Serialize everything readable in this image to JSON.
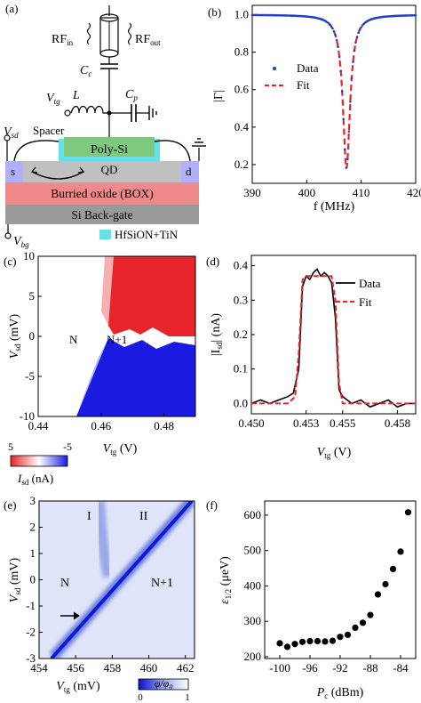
{
  "panels": {
    "a": {
      "label": "(a)",
      "rf_in": "RF",
      "rf_in_sub": "in",
      "rf_out": "RF",
      "rf_out_sub": "out",
      "cc": "C",
      "cc_sub": "c",
      "vtg": "V",
      "vtg_sub": "tg",
      "inductor": "L",
      "cp": "C",
      "cp_sub": "p",
      "vsd": "V",
      "vsd_sub": "sd",
      "spacer": "Spacer",
      "gate": "Poly-Si",
      "qd": "QD",
      "source": "s",
      "drain": "d",
      "box": "Burried oxide (BOX)",
      "backgate": "Si Back-gate",
      "vbg": "V",
      "vbg_sub": "bg",
      "legend_dielectric": "HfSiON+TiN",
      "colors": {
        "gate": "#7fc97f",
        "qd": "#e8252a",
        "box": "#f08a8a",
        "backgate": "#9a9a9a",
        "channel": "#c0c0c0",
        "contacts": "#b0b0ff",
        "dielectric": "#66e0e8"
      }
    },
    "e": {
      "label": "(e)",
      "region_labels": [
        "I",
        "II",
        "N",
        "N+1"
      ],
      "colorbar_label": "φ/φ",
      "colorbar_label_sub": "0",
      "colorbar_ticks": [
        "0",
        "1"
      ]
    },
    "c": {
      "colorbar_ticks": [
        "5",
        "-5"
      ],
      "colorbar_label": "I",
      "colorbar_label_sub": "sd",
      "colorbar_unit": " (nA)"
    }
  },
  "chart_data": [
    {
      "panel": "(b)",
      "type": "line",
      "xlabel": "f (MHz)",
      "ylabel": "|Γ|",
      "xlim": [
        390,
        420
      ],
      "ylim": [
        0.1,
        1.05
      ],
      "xticks": [
        "390",
        "400",
        "410",
        "420"
      ],
      "yticks": [
        "0.2",
        "0.4",
        "0.6",
        "0.8",
        "1.0"
      ],
      "legend": [
        "Data",
        "Fit"
      ],
      "legend_position": "center-left",
      "series": [
        {
          "name": "Data",
          "style": "dots",
          "color": "#1f3fcf",
          "resonance": {
            "f0": 407.3,
            "baseline": 1.0,
            "min": 0.18,
            "width": 1.6
          }
        },
        {
          "name": "Fit",
          "style": "dashed",
          "color": "#e8252a",
          "resonance": {
            "f0": 407.3,
            "baseline": 1.0,
            "min": 0.18,
            "width": 1.6
          }
        }
      ]
    },
    {
      "panel": "(c)",
      "type": "heatmap",
      "xlabel": "V",
      "xlabel_sub": "tg",
      "xlabel_unit": " (V)",
      "ylabel": "V",
      "ylabel_sub": "sd",
      "ylabel_unit": " (mV)",
      "xlim": [
        0.44,
        0.49
      ],
      "ylim": [
        -10,
        10
      ],
      "xticks": [
        "0.44",
        "0.46",
        "0.48"
      ],
      "yticks": [
        "10",
        "5",
        "0",
        "-5",
        "-10"
      ],
      "annotations": [
        "N",
        "N+1"
      ],
      "colorbar_range": [
        5,
        -5
      ]
    },
    {
      "panel": "(d)",
      "type": "line",
      "xlabel": "V",
      "xlabel_sub": "tg",
      "xlabel_unit": " (V)",
      "ylabel": "|I",
      "ylabel_sub": "sd",
      "ylabel_unit": "| (nA)",
      "xlim": [
        0.45,
        0.459
      ],
      "ylim": [
        -0.03,
        0.43
      ],
      "xticks": [
        "0.450",
        "0.453",
        "0.455",
        "0.458"
      ],
      "yticks": [
        "0.0",
        "0.1",
        "0.2",
        "0.3",
        "0.4"
      ],
      "legend": [
        "Data",
        "Fit"
      ],
      "legend_position": "top-right",
      "series": [
        {
          "name": "Data",
          "color": "#000000",
          "x": [
            0.45,
            0.4505,
            0.451,
            0.4515,
            0.452,
            0.4523,
            0.4526,
            0.4528,
            0.453,
            0.4532,
            0.4534,
            0.4536,
            0.4538,
            0.454,
            0.4542,
            0.4544,
            0.4546,
            0.4548,
            0.455,
            0.4555,
            0.456,
            0.4565,
            0.457,
            0.4575,
            0.458,
            0.4585,
            0.459
          ],
          "y": [
            0.0,
            0.01,
            0.0,
            0.01,
            0.02,
            0.03,
            0.1,
            0.34,
            0.37,
            0.36,
            0.38,
            0.39,
            0.37,
            0.38,
            0.37,
            0.35,
            0.25,
            0.04,
            0.02,
            0.0,
            0.01,
            -0.01,
            0.0,
            0.01,
            -0.01,
            0.0,
            0.0
          ]
        },
        {
          "name": "Fit",
          "color": "#e8252a",
          "style": "dashed",
          "x": [
            0.45,
            0.452,
            0.4524,
            0.4526,
            0.4528,
            0.453,
            0.4544,
            0.4546,
            0.4548,
            0.455,
            0.459
          ],
          "y": [
            0.0,
            0.0,
            0.02,
            0.15,
            0.36,
            0.37,
            0.37,
            0.3,
            0.06,
            0.0,
            0.0
          ]
        }
      ]
    },
    {
      "panel": "(e)",
      "type": "heatmap",
      "xlabel": "V",
      "xlabel_sub": "tg",
      "xlabel_unit": " (mV)",
      "ylabel": "V",
      "ylabel_sub": "sd",
      "ylabel_unit": " (mV)",
      "xlim": [
        454,
        462.5
      ],
      "ylim": [
        -3,
        3
      ],
      "xticks": [
        "454",
        "456",
        "458",
        "460",
        "462"
      ],
      "yticks": [
        "3",
        "2",
        "1",
        "0",
        "-1",
        "-2",
        "-3"
      ]
    },
    {
      "panel": "(f)",
      "type": "scatter",
      "xlabel": "P",
      "xlabel_sub": "c",
      "xlabel_unit": " (dBm)",
      "ylabel": "ε",
      "ylabel_sub": "1/2",
      "ylabel_unit": " (μeV)",
      "xlim": [
        -102,
        -82
      ],
      "ylim": [
        195,
        640
      ],
      "xticks": [
        "-100",
        "-96",
        "-92",
        "-88",
        "-84"
      ],
      "yticks": [
        "200",
        "300",
        "400",
        "500",
        "600"
      ],
      "series": [
        {
          "name": "",
          "color": "#000000",
          "x": [
            -100,
            -99,
            -98,
            -97,
            -96,
            -95,
            -94,
            -93,
            -92,
            -91,
            -90,
            -89,
            -88,
            -87,
            -86,
            -85,
            -84,
            -83
          ],
          "y": [
            238,
            228,
            236,
            242,
            244,
            244,
            243,
            245,
            256,
            262,
            282,
            296,
            318,
            376,
            405,
            448,
            497,
            608
          ]
        }
      ]
    }
  ]
}
